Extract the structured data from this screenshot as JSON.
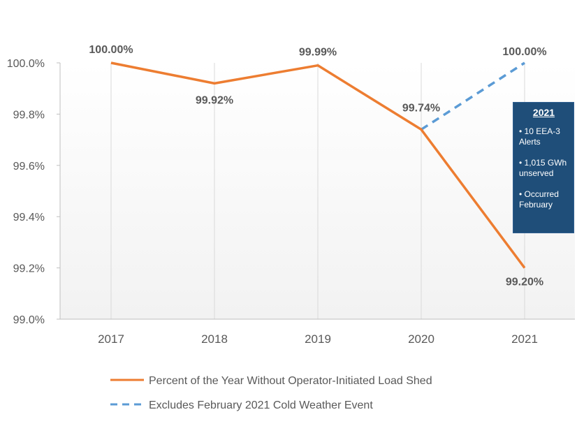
{
  "chart_data": {
    "type": "line",
    "categories": [
      "2017",
      "2018",
      "2019",
      "2020",
      "2021"
    ],
    "ylim": [
      99.0,
      100.0
    ],
    "yticks": [
      "99.0%",
      "99.2%",
      "99.4%",
      "99.6%",
      "99.8%",
      "100.0%"
    ],
    "ytick_values": [
      99.0,
      99.2,
      99.4,
      99.6,
      99.8,
      100.0
    ],
    "series": [
      {
        "name": "Percent of the Year Without Operator-Initiated Load Shed",
        "color": "#ed7d31",
        "style": "solid",
        "values": [
          100.0,
          99.92,
          99.99,
          99.74,
          99.2
        ],
        "labels": [
          "100.00%",
          "99.92%",
          "99.99%",
          "99.74%",
          "99.20%"
        ]
      },
      {
        "name": "Excludes February 2021 Cold Weather Event",
        "color": "#5b9bd5",
        "style": "dashed",
        "x": [
          "2020",
          "2021"
        ],
        "values": [
          99.74,
          100.0
        ],
        "labels": [
          "",
          "100.00%"
        ]
      }
    ],
    "annotation": {
      "title": "2021",
      "items": [
        "• 10 EEA-3 Alerts",
        "• 1,015 GWh unserved",
        "• Occurred February"
      ]
    }
  }
}
